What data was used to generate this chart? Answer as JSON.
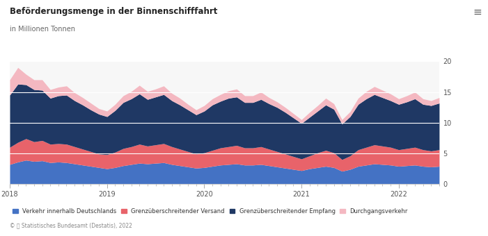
{
  "title": "Beförderungsmenge in der Binnenschifffahrt",
  "subtitle": "in Millionen Tonnen",
  "ylim": [
    0,
    20
  ],
  "yticks": [
    0,
    5,
    10,
    15,
    20
  ],
  "background_color": "#ffffff",
  "plot_background": "#f7f7f7",
  "copyright": "© ⦾ Statistisches Bundesamt (Destatis), 2022",
  "legend_labels": [
    "Verkehr innerhalb Deutschlands",
    "Grenzüberschreitender Versand",
    "Grenzüberschreitender Empfang",
    "Durchgangsverkehr"
  ],
  "colors": [
    "#4472c4",
    "#e8636a",
    "#1f3864",
    "#f4b8c1"
  ],
  "n_months": 54,
  "start_year": 2018,
  "data": {
    "verkehr_innerhalb": [
      3.2,
      3.6,
      3.9,
      3.7,
      3.8,
      3.5,
      3.6,
      3.5,
      3.3,
      3.1,
      2.9,
      2.7,
      2.5,
      2.7,
      3.0,
      3.2,
      3.4,
      3.3,
      3.4,
      3.5,
      3.2,
      3.0,
      2.8,
      2.6,
      2.7,
      2.9,
      3.1,
      3.2,
      3.3,
      3.1,
      3.1,
      3.2,
      3.0,
      2.8,
      2.6,
      2.4,
      2.2,
      2.5,
      2.7,
      2.9,
      2.7,
      2.1,
      2.4,
      2.9,
      3.1,
      3.3,
      3.2,
      3.1,
      2.9,
      3.0,
      3.1,
      2.9,
      2.8,
      2.9
    ],
    "grenz_versand": [
      2.8,
      3.2,
      3.5,
      3.2,
      3.3,
      3.0,
      3.0,
      3.0,
      2.8,
      2.6,
      2.4,
      2.2,
      2.3,
      2.5,
      2.8,
      2.9,
      3.1,
      2.9,
      3.0,
      3.1,
      2.9,
      2.7,
      2.5,
      2.3,
      2.4,
      2.6,
      2.8,
      2.9,
      3.0,
      2.8,
      2.8,
      2.9,
      2.7,
      2.5,
      2.3,
      2.1,
      1.9,
      2.1,
      2.4,
      2.6,
      2.4,
      1.9,
      2.2,
      2.7,
      2.9,
      3.1,
      3.0,
      2.9,
      2.7,
      2.8,
      2.9,
      2.7,
      2.6,
      2.7
    ],
    "grenz_empfang": [
      8.5,
      9.5,
      8.8,
      8.5,
      8.2,
      7.5,
      7.8,
      8.0,
      7.5,
      7.2,
      6.8,
      6.5,
      6.2,
      6.8,
      7.5,
      7.8,
      8.2,
      7.6,
      7.8,
      8.0,
      7.5,
      7.2,
      6.8,
      6.4,
      6.8,
      7.4,
      7.6,
      7.9,
      7.9,
      7.4,
      7.4,
      7.7,
      7.4,
      7.2,
      6.8,
      6.3,
      5.8,
      6.3,
      6.8,
      7.4,
      7.1,
      5.8,
      6.4,
      7.4,
      7.9,
      8.2,
      7.9,
      7.6,
      7.4,
      7.6,
      7.9,
      7.4,
      7.4,
      7.6
    ],
    "durchgangsverkehr": [
      2.5,
      2.7,
      1.7,
      1.6,
      1.7,
      1.4,
      1.4,
      1.5,
      1.3,
      1.2,
      1.1,
      0.9,
      0.9,
      1.0,
      1.1,
      1.2,
      1.4,
      1.3,
      1.3,
      1.4,
      1.2,
      1.1,
      0.9,
      0.8,
      0.9,
      1.0,
      1.1,
      1.2,
      1.3,
      1.1,
      1.1,
      1.2,
      1.0,
      0.9,
      0.8,
      0.7,
      0.6,
      0.8,
      0.9,
      1.1,
      0.9,
      0.7,
      0.8,
      1.0,
      1.2,
      1.3,
      1.2,
      1.1,
      0.9,
      1.0,
      1.1,
      0.9,
      0.8,
      0.9
    ]
  }
}
